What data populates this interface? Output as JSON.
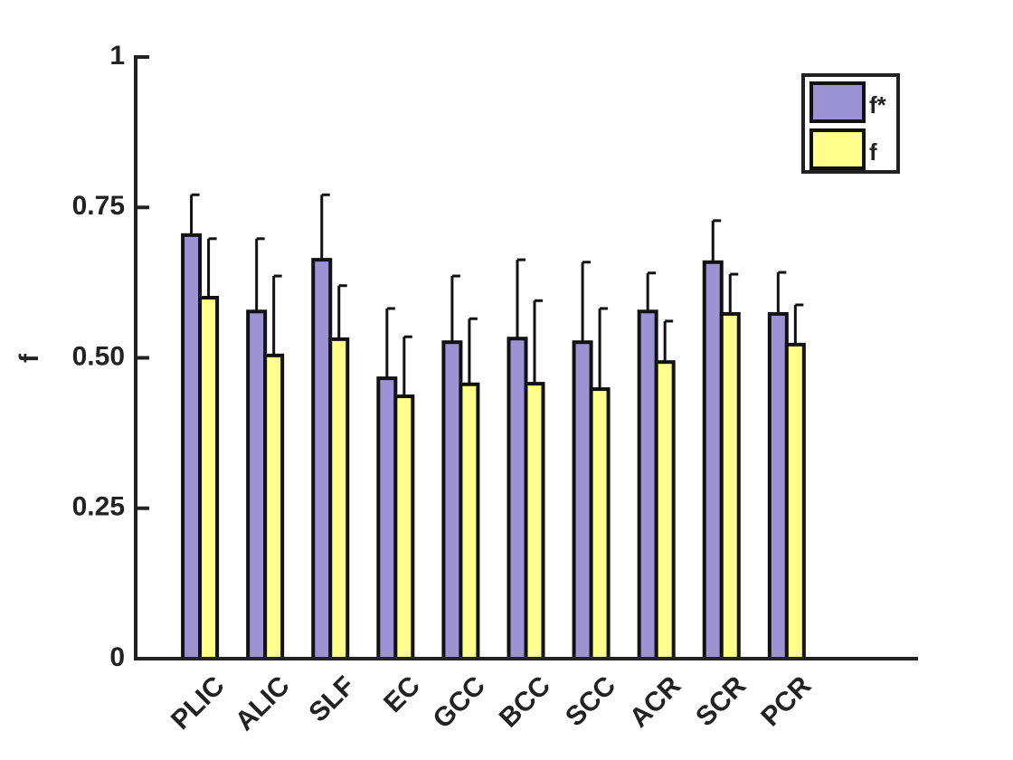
{
  "chart_data": {
    "type": "bar",
    "y_label": "f",
    "categories": [
      "PLIC",
      "ALIC",
      "SLF",
      "EC",
      "GCC",
      "BCC",
      "SCC",
      "ACR",
      "SCR",
      "PCR"
    ],
    "series": [
      {
        "name": "f*",
        "color": "#9b93d3",
        "values": [
          0.704,
          0.577,
          0.663,
          0.466,
          0.526,
          0.532,
          0.526,
          0.577,
          0.659,
          0.573
        ],
        "errors": [
          0.067,
          0.121,
          0.108,
          0.116,
          0.11,
          0.131,
          0.133,
          0.064,
          0.069,
          0.069
        ]
      },
      {
        "name": "f",
        "color": "#ffff8c",
        "values": [
          0.6,
          0.504,
          0.531,
          0.436,
          0.456,
          0.457,
          0.448,
          0.493,
          0.573,
          0.522
        ],
        "errors": [
          0.098,
          0.132,
          0.089,
          0.099,
          0.109,
          0.138,
          0.134,
          0.068,
          0.066,
          0.066
        ]
      }
    ],
    "ylim": [
      0,
      1
    ],
    "yticks": [
      0,
      0.25,
      {
        "value": 0.5,
        "label": "0.50"
      },
      0.75,
      1
    ],
    "legend": "upper-right"
  }
}
